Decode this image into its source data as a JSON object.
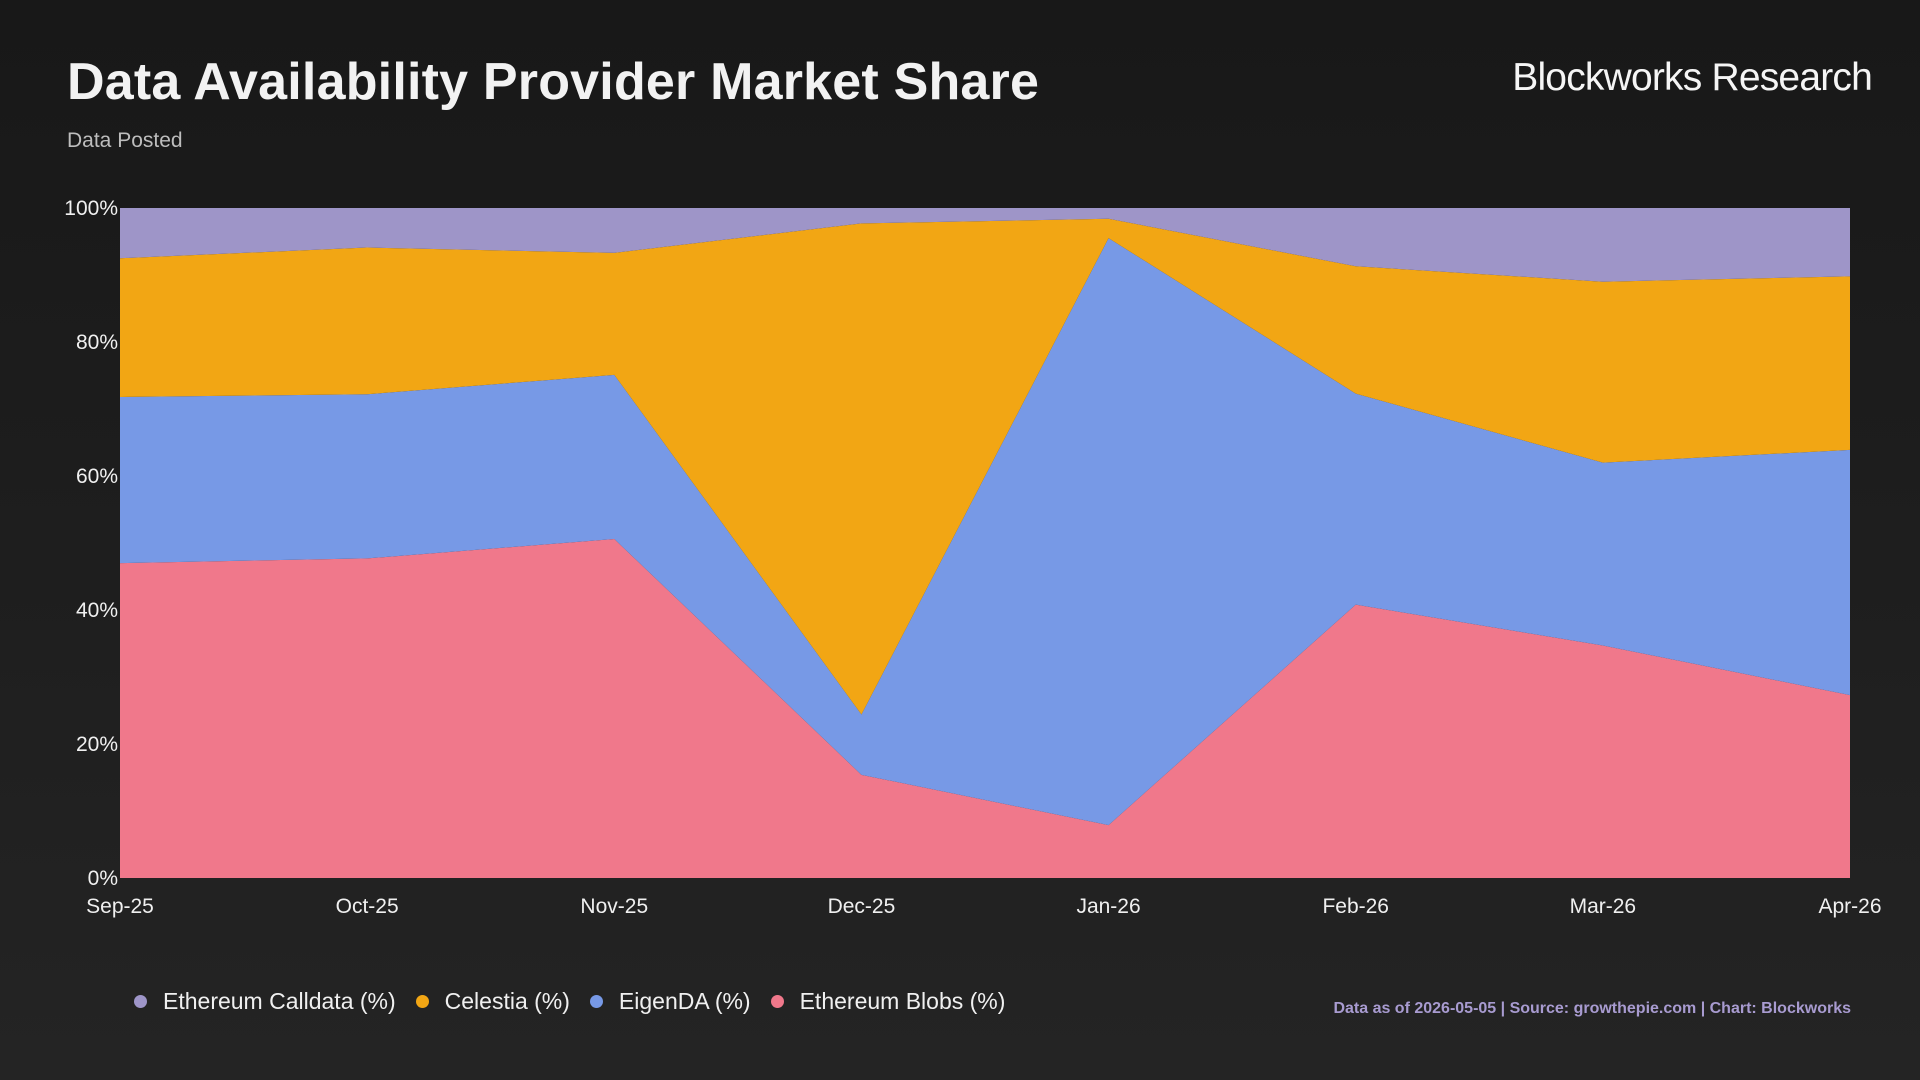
{
  "header": {
    "title": "Data Availability Provider Market Share",
    "subtitle": "Data Posted",
    "brand": "Blockworks Research"
  },
  "footer": {
    "source": "Data as of 2026-05-05 | Source: growthepie.com | Chart: Blockworks"
  },
  "colors": {
    "calldata": "#9e95c8",
    "celestia": "#f2a614",
    "eigenda": "#7799e6",
    "blobs": "#f0788b"
  },
  "chart_data": {
    "type": "area",
    "stacked": true,
    "normalized": true,
    "title": "Data Availability Provider Market Share",
    "subtitle": "Data Posted",
    "categories": [
      "Sep-25",
      "Oct-25",
      "Nov-25",
      "Dec-25",
      "Jan-26",
      "Feb-26",
      "Mar-26",
      "Apr-26"
    ],
    "y_ticks": [
      "0%",
      "20%",
      "40%",
      "60%",
      "80%",
      "100%"
    ],
    "ylim": [
      0,
      100
    ],
    "grid": false,
    "legend_position": "bottom-left",
    "series": [
      {
        "name": "Ethereum Blobs (%)",
        "key": "blobs",
        "color": "#f0788b",
        "values": [
          47,
          47.7,
          50.6,
          15.4,
          7.9,
          40.8,
          34.7,
          27.3
        ]
      },
      {
        "name": "EigenDA (%)",
        "key": "eigenda",
        "color": "#7799e6",
        "values": [
          24.8,
          24.5,
          24.5,
          9.0,
          87.6,
          31.5,
          27.3,
          36.6
        ]
      },
      {
        "name": "Celestia (%)",
        "key": "celestia",
        "color": "#f2a614",
        "values": [
          20.7,
          21.9,
          18.2,
          73.3,
          2.9,
          19.0,
          27.0,
          25.9
        ]
      },
      {
        "name": "Ethereum Calldata (%)",
        "key": "calldata",
        "color": "#9e95c8",
        "values": [
          7.5,
          5.9,
          6.7,
          2.3,
          1.6,
          8.7,
          11.0,
          10.2
        ]
      }
    ],
    "legend_order": [
      "calldata",
      "celestia",
      "eigenda",
      "blobs"
    ]
  }
}
